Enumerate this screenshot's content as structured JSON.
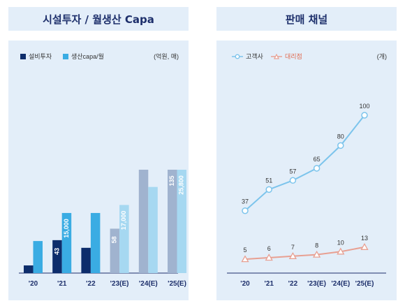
{
  "chart_data": [
    {
      "type": "bar",
      "title": "시설투자 / 월생산 Capa",
      "unit": "(억원, 매)",
      "categories": [
        "'20",
        "'21",
        "'22",
        "'23(E)",
        "'24(E)",
        "'25(E)"
      ],
      "series": [
        {
          "name": "설비투자",
          "values": [
            10,
            43,
            33,
            58,
            135,
            135
          ],
          "labels": [
            "",
            "43",
            "",
            "58",
            "",
            "135"
          ],
          "colors": [
            "#0d2d6b",
            "#0d2d6b",
            "#0d2d6b",
            "#a0b3cf",
            "#a0b3cf",
            "#a0b3cf"
          ]
        },
        {
          "name": "생산capa/월",
          "values": [
            8000,
            15000,
            15000,
            17000,
            21500,
            25800
          ],
          "labels": [
            "",
            "15,000",
            "",
            "17,000",
            "",
            "25,800"
          ],
          "colors": [
            "#3aace3",
            "#3aace3",
            "#3aace3",
            "#a6d8f1",
            "#a6d8f1",
            "#a6d8f1"
          ]
        }
      ]
    },
    {
      "type": "line",
      "title": "판매 채널",
      "unit": "(개)",
      "categories": [
        "'20",
        "'21",
        "'22",
        "'23(E)",
        "'24(E)",
        "'25(E)"
      ],
      "series": [
        {
          "name": "고객사",
          "values": [
            37,
            51,
            57,
            65,
            80,
            100
          ],
          "color": "#7cc4ec"
        },
        {
          "name": "대리점",
          "values": [
            5,
            6,
            7,
            8,
            10,
            13
          ],
          "color": "#e8a092"
        }
      ]
    }
  ]
}
